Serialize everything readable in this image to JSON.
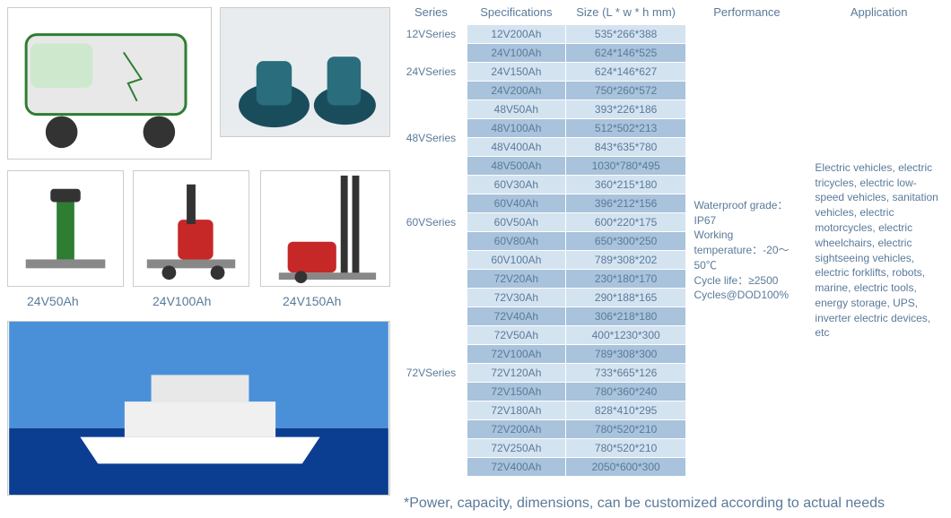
{
  "colors": {
    "text": "#5a7a9a",
    "row_even": "#d4e3f0",
    "row_odd": "#a8c3db",
    "border": "#ffffff"
  },
  "captions": {
    "c1": "24V50Ah",
    "c2": "24V100Ah",
    "c3": "24V150Ah"
  },
  "images": {
    "vehicle": "electric-sanitation-vehicle",
    "scrubber": "floor-scrubber-machines",
    "forklift1": "pallet-jack-green",
    "forklift2": "pallet-truck-red",
    "forklift3": "stacker-forklift",
    "yacht": "yacht-ocean"
  },
  "headers": {
    "series": "Series",
    "spec": "Specifications",
    "size": "Size (L * w * h mm)",
    "perf": "Performance",
    "app": "Application"
  },
  "performance": "Waterproof grade：IP67\nWorking temperature：-20～50℃\nCycle life：≥2500 Cycles@DOD100%",
  "application": "Electric vehicles, electric tricycles, electric low-speed vehicles, sanitation vehicles, electric motorcycles, electric wheelchairs, electric sightseeing vehicles, electric forklifts, robots, marine, electric tools, energy storage, UPS, inverter electric devices, etc",
  "footnote": "*Power, capacity, dimensions, can be customized according to actual needs",
  "groups": [
    {
      "series": "12VSeries",
      "rows": [
        {
          "spec": "12V200Ah",
          "size": "535*266*388"
        }
      ]
    },
    {
      "series": "24VSeries",
      "rows": [
        {
          "spec": "24V100Ah",
          "size": "624*146*525"
        },
        {
          "spec": "24V150Ah",
          "size": "624*146*627"
        },
        {
          "spec": "24V200Ah",
          "size": "750*260*572"
        }
      ]
    },
    {
      "series": "48VSeries",
      "rows": [
        {
          "spec": "48V50Ah",
          "size": "393*226*186"
        },
        {
          "spec": "48V100Ah",
          "size": "512*502*213"
        },
        {
          "spec": "48V400Ah",
          "size": "843*635*780"
        },
        {
          "spec": "48V500Ah",
          "size": "1030*780*495"
        }
      ]
    },
    {
      "series": "60VSeries",
      "rows": [
        {
          "spec": "60V30Ah",
          "size": "360*215*180"
        },
        {
          "spec": "60V40Ah",
          "size": "396*212*156"
        },
        {
          "spec": "60V50Ah",
          "size": "600*220*175"
        },
        {
          "spec": "60V80Ah",
          "size": "650*300*250"
        },
        {
          "spec": "60V100Ah",
          "size": "789*308*202"
        }
      ]
    },
    {
      "series": "72VSeries",
      "rows": [
        {
          "spec": "72V20Ah",
          "size": "230*180*170"
        },
        {
          "spec": "72V30Ah",
          "size": "290*188*165"
        },
        {
          "spec": "72V40Ah",
          "size": "306*218*180"
        },
        {
          "spec": "72V50Ah",
          "size": "400*1230*300"
        },
        {
          "spec": "72V100Ah",
          "size": "789*308*300"
        },
        {
          "spec": "72V120Ah",
          "size": "733*665*126"
        },
        {
          "spec": "72V150Ah",
          "size": "780*360*240"
        },
        {
          "spec": "72V180Ah",
          "size": "828*410*295"
        },
        {
          "spec": "72V200Ah",
          "size": "780*520*210"
        },
        {
          "spec": "72V250Ah",
          "size": "780*520*210"
        },
        {
          "spec": "72V400Ah",
          "size": "2050*600*300"
        }
      ]
    }
  ]
}
